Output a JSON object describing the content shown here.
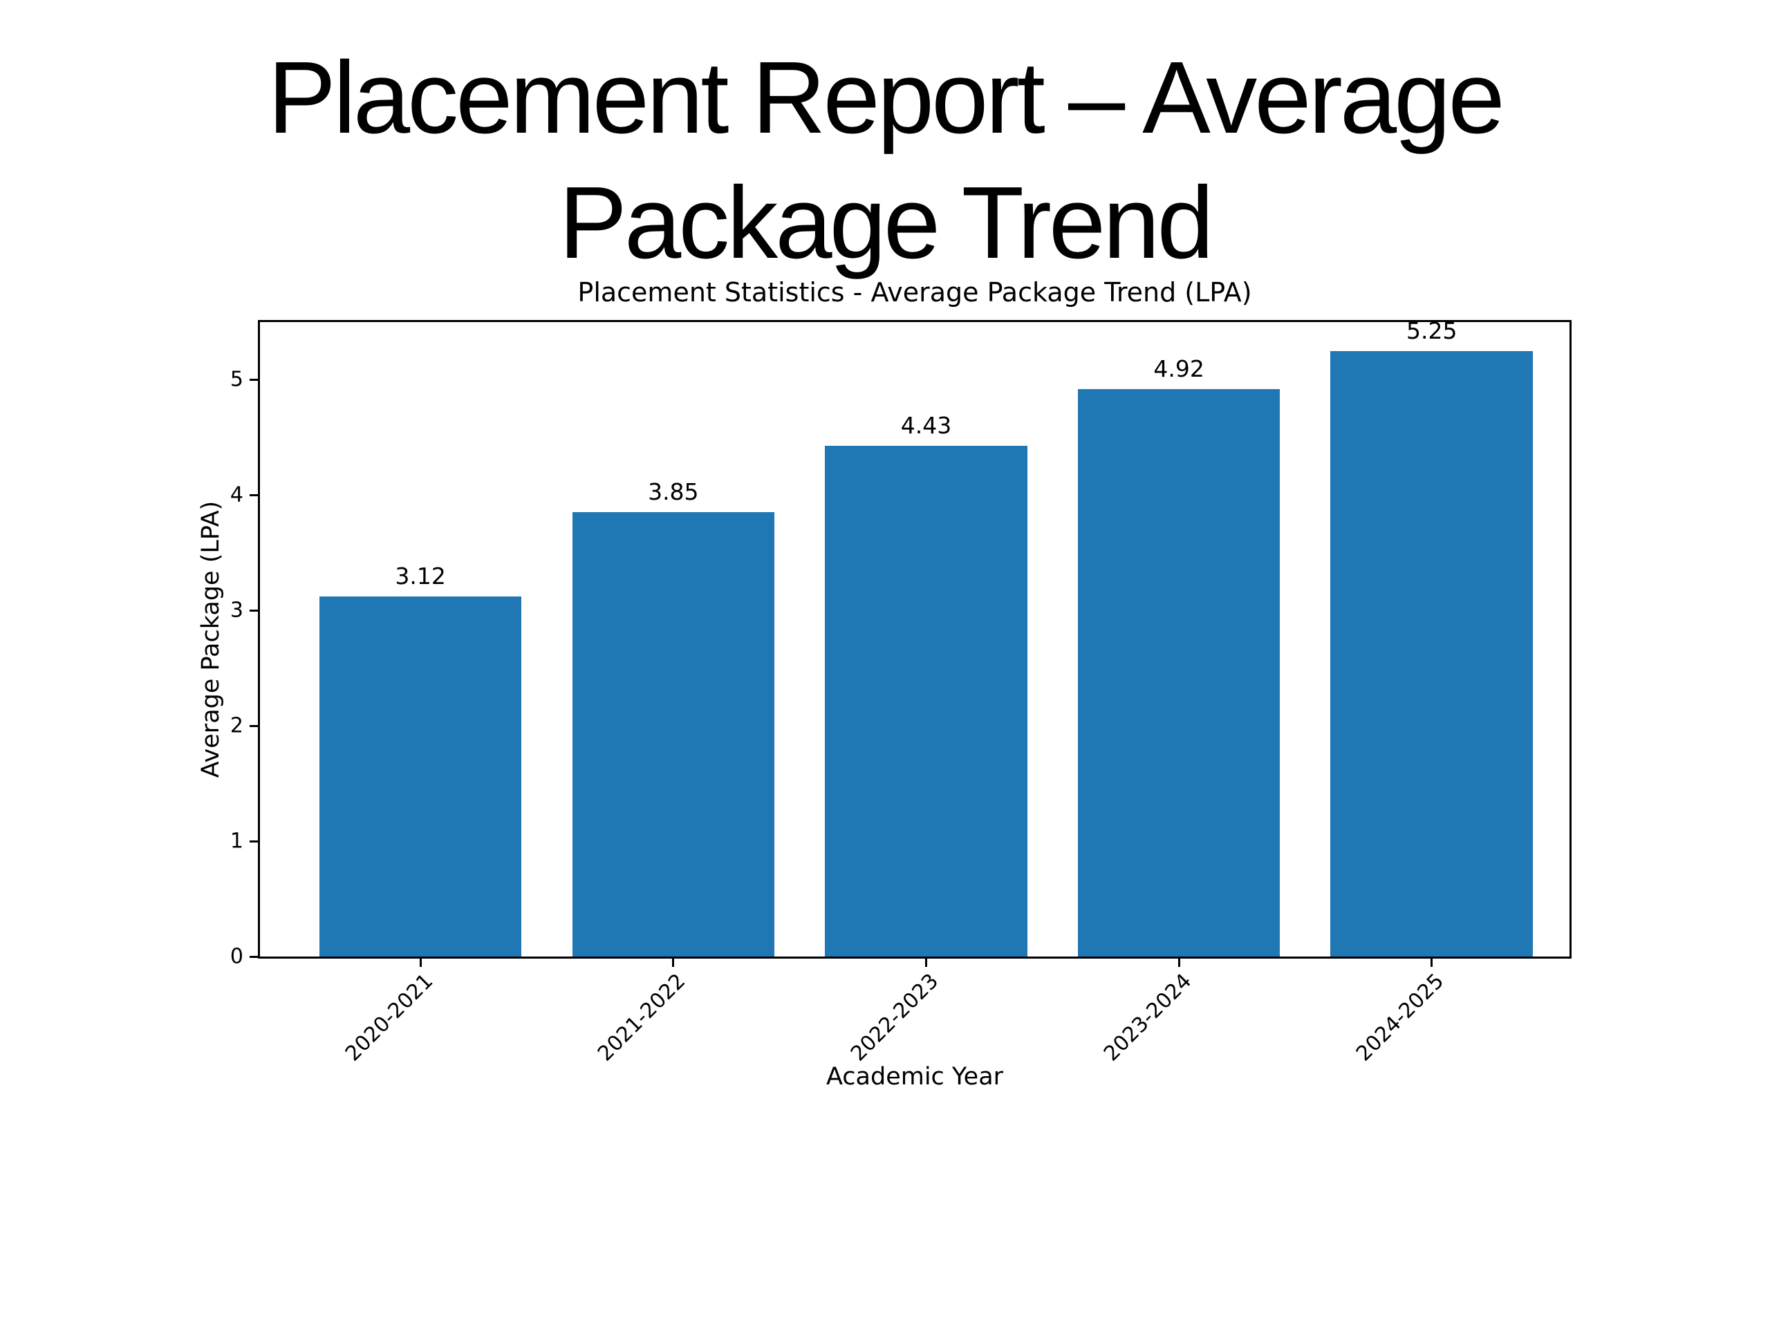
{
  "slide": {
    "title_line1": "Placement Report – Average",
    "title_line2": "Package Trend"
  },
  "chart_data": {
    "type": "bar",
    "title": "Placement Statistics - Average Package Trend (LPA)",
    "xlabel": "Academic Year",
    "ylabel": "Average Package (LPA)",
    "categories": [
      "2020-2021",
      "2021-2022",
      "2022-2023",
      "2023-2024",
      "2024-2025"
    ],
    "values": [
      3.12,
      3.85,
      4.43,
      4.92,
      5.25
    ],
    "bar_value_labels": [
      "3.12",
      "3.85",
      "4.43",
      "4.92",
      "5.25"
    ],
    "yticks": [
      0,
      1,
      2,
      3,
      4,
      5
    ],
    "ylim": [
      0,
      5.5
    ],
    "xlim": [
      -0.635,
      4.545
    ],
    "bar_width_units": 0.8,
    "bar_color": "#1f77b4",
    "text_color": "#000000",
    "grid": false,
    "legend": false,
    "xtick_rotation_deg": 45
  }
}
